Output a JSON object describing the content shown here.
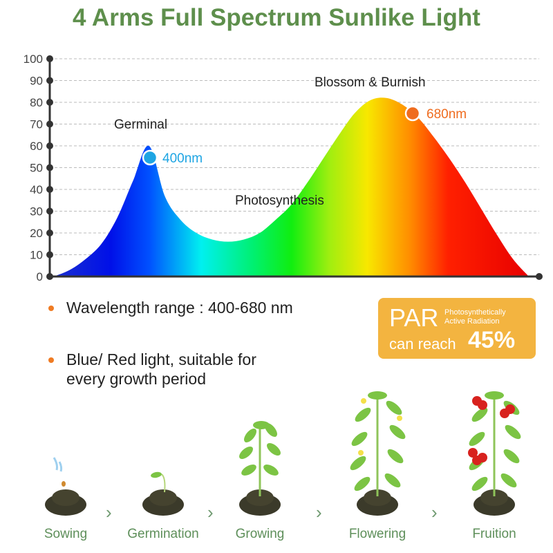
{
  "title": "4 Arms Full Spectrum Sunlike Light",
  "chart_data": {
    "type": "area",
    "title": "",
    "xlabel": "",
    "ylabel": "",
    "ylim": [
      0,
      100
    ],
    "yticks": [
      "0",
      "10",
      "20",
      "30",
      "40",
      "50",
      "60",
      "70",
      "80",
      "90",
      "100"
    ],
    "grid": true,
    "values": [
      0,
      3,
      8,
      15,
      27,
      44,
      60,
      37,
      26,
      20,
      17,
      16,
      17,
      20,
      26,
      33,
      43,
      54,
      65,
      75,
      81,
      82,
      79,
      73,
      64,
      54,
      43,
      31,
      19,
      8,
      0
    ],
    "fill": "rainbow gradient blue to red",
    "annotations": {
      "germinal": "Germinal",
      "photosynthesis": "Photosynthesis",
      "blossom": "Blossom & Burnish"
    },
    "markers": [
      {
        "label": "400nm",
        "value": 55,
        "color": "#1ea5e3"
      },
      {
        "label": "680nm",
        "value": 75,
        "color": "#ef6c1f"
      }
    ]
  },
  "bullets": [
    "Wavelength range : 400-680 nm",
    "Blue/ Red light, suitable for",
    "every growth period"
  ],
  "par": {
    "big": "PAR",
    "small1": "Photosynthetically",
    "small2": "Active Radiation",
    "reach": "can reach",
    "percent": "45%"
  },
  "stages": [
    "Sowing",
    "Germination",
    "Growing",
    "Flowering",
    "Fruition"
  ],
  "colors": {
    "title": "#5e8f4c",
    "bullet": "#ef7b23",
    "par_bg": "#f3b440",
    "stage": "#5e8f5a"
  }
}
